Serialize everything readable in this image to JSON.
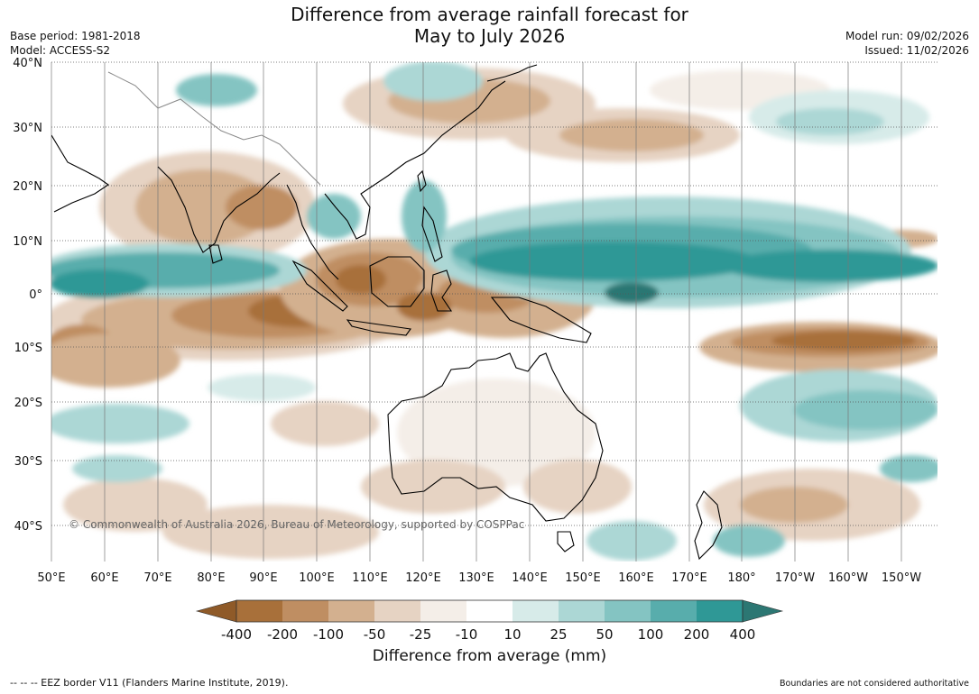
{
  "title_line1": "Difference from average rainfall forecast for",
  "title_line2": "May to July 2026",
  "base_period": "Base period: 1981-2018",
  "model": "Model: ACCESS-S2",
  "model_run": "Model run: 09/02/2026",
  "issued": "Issued: 11/02/2026",
  "copyright": "© Commonwealth of Australia 2026, Bureau of Meteorology, supported by COSPPac",
  "lat_labels": [
    "40°N",
    "30°N",
    "20°N",
    "10°N",
    "0°",
    "10°S",
    "20°S",
    "30°S",
    "40°S"
  ],
  "lon_labels": [
    "50°E",
    "60°E",
    "70°E",
    "80°E",
    "90°E",
    "100°E",
    "110°E",
    "120°E",
    "130°E",
    "140°E",
    "150°E",
    "160°E",
    "170°E",
    "180°",
    "170°W",
    "160°W",
    "150°W"
  ],
  "colorbar": {
    "title": "Difference from average (mm)",
    "tick_labels": [
      "-400",
      "-200",
      "-100",
      "-50",
      "-25",
      "-10",
      "10",
      "25",
      "50",
      "100",
      "200",
      "400"
    ],
    "colors": [
      "#8f5a28",
      "#a8703a",
      "#bf8e62",
      "#d3b08f",
      "#e6d3c3",
      "#f4eee8",
      "#ffffff",
      "#d7ebe9",
      "#acd7d5",
      "#84c4c2",
      "#58adac",
      "#2f9896",
      "#2c7773"
    ]
  },
  "footer_left": "--  --  -- EEZ border V11 (Flanders Marine Institute, 2019).",
  "footer_right": "Boundaries are not considered authoritative"
}
